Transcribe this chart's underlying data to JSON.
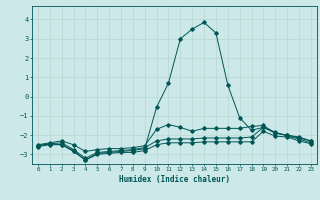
{
  "xlabel": "Humidex (Indice chaleur)",
  "xlim": [
    -0.5,
    23.5
  ],
  "ylim": [
    -3.5,
    4.7
  ],
  "yticks": [
    -3,
    -2,
    -1,
    0,
    1,
    2,
    3,
    4
  ],
  "xticks": [
    0,
    1,
    2,
    3,
    4,
    5,
    6,
    7,
    8,
    9,
    10,
    11,
    12,
    13,
    14,
    15,
    16,
    17,
    18,
    19,
    20,
    21,
    22,
    23
  ],
  "bg_color": "#cce8e8",
  "line_color": "#005555",
  "grid_color": "#b8d8d0",
  "series": [
    {
      "x": [
        0,
        1,
        2,
        3,
        4,
        5,
        6,
        7,
        8,
        9,
        10,
        11,
        12,
        13,
        14,
        15,
        16,
        17,
        18,
        19,
        20,
        21,
        22,
        23
      ],
      "y": [
        -2.5,
        -2.4,
        -2.3,
        -2.5,
        -2.85,
        -2.75,
        -2.7,
        -2.7,
        -2.65,
        -2.55,
        -1.7,
        -1.45,
        -1.6,
        -1.8,
        -1.65,
        -1.65,
        -1.65,
        -1.65,
        -1.55,
        -1.5,
        -1.9,
        -2.0,
        -2.1,
        -2.3
      ]
    },
    {
      "x": [
        0,
        1,
        2,
        3,
        4,
        5,
        6,
        7,
        8,
        9,
        10,
        11,
        12,
        13,
        14,
        15,
        16,
        17,
        18,
        19,
        20,
        21,
        22,
        23
      ],
      "y": [
        -2.55,
        -2.45,
        -2.4,
        -2.75,
        -3.2,
        -2.9,
        -2.85,
        -2.8,
        -2.75,
        -2.65,
        -2.3,
        -2.2,
        -2.2,
        -2.2,
        -2.15,
        -2.15,
        -2.15,
        -2.15,
        -2.1,
        -1.6,
        -1.9,
        -2.0,
        -2.15,
        -2.3
      ]
    },
    {
      "x": [
        0,
        1,
        2,
        3,
        4,
        5,
        6,
        7,
        8,
        9,
        10,
        11,
        12,
        13,
        14,
        15,
        16,
        17,
        18,
        19,
        20,
        21,
        22,
        23
      ],
      "y": [
        -2.6,
        -2.5,
        -2.5,
        -2.8,
        -3.3,
        -3.0,
        -2.95,
        -2.9,
        -2.9,
        -2.8,
        -2.5,
        -2.4,
        -2.4,
        -2.4,
        -2.35,
        -2.35,
        -2.35,
        -2.35,
        -2.35,
        -1.8,
        -2.05,
        -2.1,
        -2.3,
        -2.45
      ]
    },
    {
      "x": [
        0,
        1,
        2,
        3,
        4,
        5,
        6,
        7,
        8,
        9,
        10,
        11,
        12,
        13,
        14,
        15,
        16,
        17,
        18,
        19,
        20,
        21,
        22,
        23
      ],
      "y": [
        -2.55,
        -2.45,
        -2.5,
        -2.85,
        -3.3,
        -2.95,
        -2.9,
        -2.85,
        -2.8,
        -2.7,
        -0.55,
        0.7,
        3.0,
        3.5,
        3.85,
        3.3,
        0.6,
        -1.1,
        -1.75,
        -1.6,
        -1.85,
        -2.05,
        -2.2,
        -2.4
      ]
    }
  ]
}
